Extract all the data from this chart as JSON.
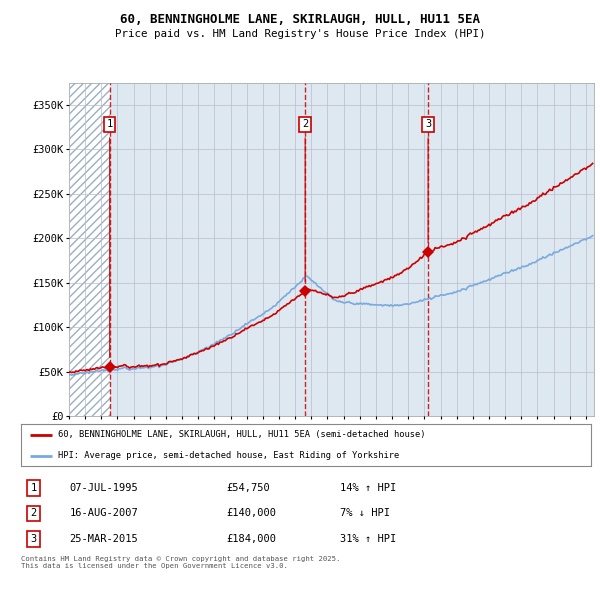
{
  "title": "60, BENNINGHOLME LANE, SKIRLAUGH, HULL, HU11 5EA",
  "subtitle": "Price paid vs. HM Land Registry's House Price Index (HPI)",
  "legend_line1": "60, BENNINGHOLME LANE, SKIRLAUGH, HULL, HU11 5EA (semi-detached house)",
  "legend_line2": "HPI: Average price, semi-detached house, East Riding of Yorkshire",
  "sale_color": "#cc0000",
  "hpi_color": "#7aaadd",
  "transactions": [
    {
      "date": 1995.52,
      "price": 54750
    },
    {
      "date": 2007.62,
      "price": 140000
    },
    {
      "date": 2015.23,
      "price": 184000
    }
  ],
  "table_rows": [
    {
      "num": "1",
      "date": "07-JUL-1995",
      "price": "£54,750",
      "hpi": "14% ↑ HPI"
    },
    {
      "num": "2",
      "date": "16-AUG-2007",
      "price": "£140,000",
      "hpi": "7% ↓ HPI"
    },
    {
      "num": "3",
      "date": "25-MAR-2015",
      "price": "£184,000",
      "hpi": "31% ↑ HPI"
    }
  ],
  "footnote": "Contains HM Land Registry data © Crown copyright and database right 2025.\nThis data is licensed under the Open Government Licence v3.0.",
  "ylim": [
    0,
    375000
  ],
  "yticks": [
    0,
    50000,
    100000,
    150000,
    200000,
    250000,
    300000,
    350000
  ],
  "ytick_labels": [
    "£0",
    "£50K",
    "£100K",
    "£150K",
    "£200K",
    "£250K",
    "£300K",
    "£350K"
  ],
  "grid_color": "#bbbbcc",
  "vline_color": "#cc0000",
  "bg_chart": "#dde8f0",
  "hatch_color": "#aabbcc"
}
